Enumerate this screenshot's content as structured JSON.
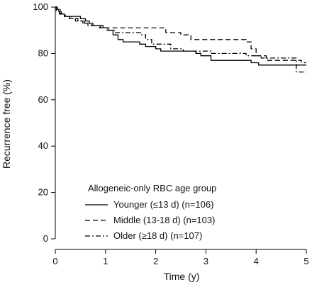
{
  "chart_data": {
    "type": "line",
    "step": true,
    "xlabel": "Time (y)",
    "ylabel": "Recurrence free (%)",
    "xlim": [
      0,
      5
    ],
    "ylim": [
      0,
      100
    ],
    "xticks": [
      "0",
      "1",
      "2",
      "3",
      "4",
      "5"
    ],
    "yticks": [
      "0",
      "20",
      "40",
      "60",
      "80",
      "100"
    ],
    "grid": false,
    "legend_title": "Allogeneic-only RBC age group",
    "legend_position": "bottom-left",
    "series": [
      {
        "name": "Younger (≤13 d) (n=106)",
        "dash": "solid",
        "x": [
          0,
          0.03,
          0.07,
          0.12,
          0.18,
          0.38,
          0.5,
          0.6,
          0.68,
          0.75,
          0.8,
          0.95,
          1.05,
          1.15,
          1.25,
          1.35,
          1.68,
          1.8,
          2.0,
          2.1,
          2.8,
          2.9,
          3.1,
          3.9,
          4.05,
          5.0
        ],
        "y": [
          100,
          99,
          98,
          97,
          96,
          96,
          95,
          94,
          93,
          92,
          92,
          91,
          90,
          88,
          86,
          85,
          84,
          83,
          82,
          81,
          80,
          79,
          77,
          76,
          75,
          75
        ]
      },
      {
        "name": "Middle (13-18 d) (n=103)",
        "dash": "dashed",
        "x": [
          0,
          0.02,
          0.08,
          0.18,
          0.28,
          0.4,
          0.55,
          0.65,
          0.78,
          0.9,
          1.0,
          1.1,
          2.2,
          2.5,
          2.7,
          3.8,
          3.9,
          4.0,
          4.2,
          4.9,
          5.0
        ],
        "y": [
          100,
          98,
          97,
          96,
          95,
          94,
          93,
          92,
          92,
          91,
          91,
          91,
          89,
          88,
          86,
          85,
          82,
          79,
          77,
          76,
          76
        ]
      },
      {
        "name": "Older (≥18 d) (n=107)",
        "dash": "dashdot",
        "x": [
          0,
          0.04,
          0.1,
          0.2,
          0.32,
          0.45,
          0.58,
          0.72,
          0.88,
          1.02,
          1.2,
          1.45,
          1.72,
          1.8,
          1.92,
          2.3,
          2.55,
          2.8,
          3.0,
          3.1,
          3.8,
          4.1,
          4.8,
          5.0
        ],
        "y": [
          100,
          99,
          97,
          96,
          95,
          94,
          93,
          92,
          91,
          90,
          89,
          89,
          88,
          86,
          84,
          82,
          81,
          81,
          81,
          80,
          79,
          78,
          72,
          72
        ]
      }
    ]
  }
}
